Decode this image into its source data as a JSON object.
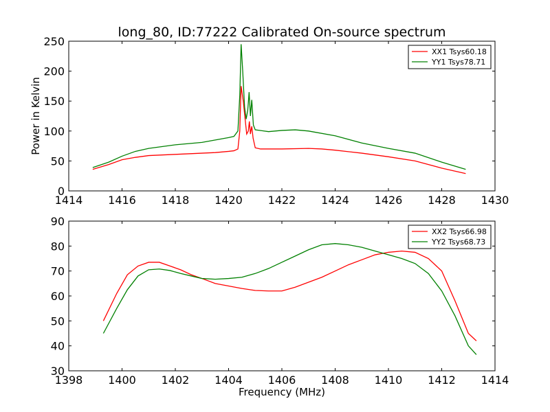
{
  "figure": {
    "title": "long_80, ID:77222 Calibrated On-source spectrum",
    "ylabel": "Power in Kelvin",
    "xlabel": "Frequency (MHz)"
  },
  "chart_data": [
    {
      "type": "line",
      "xlim": [
        1414,
        1430
      ],
      "ylim": [
        0,
        250
      ],
      "xticks": [
        1414,
        1416,
        1418,
        1420,
        1422,
        1424,
        1426,
        1428,
        1430
      ],
      "yticks": [
        0,
        50,
        100,
        150,
        200,
        250
      ],
      "legend": "top-right",
      "grid": false,
      "series": [
        {
          "name": "XX1 Tsys60.18",
          "color": "#ff0000",
          "points": [
            [
              1414.9,
              36
            ],
            [
              1415.5,
              44
            ],
            [
              1416,
              52
            ],
            [
              1416.5,
              56
            ],
            [
              1417,
              59
            ],
            [
              1417.5,
              60
            ],
            [
              1418,
              61
            ],
            [
              1418.5,
              62
            ],
            [
              1419,
              63
            ],
            [
              1419.5,
              64
            ],
            [
              1420,
              66
            ],
            [
              1420.2,
              67
            ],
            [
              1420.35,
              70
            ],
            [
              1420.42,
              100
            ],
            [
              1420.47,
              175
            ],
            [
              1420.55,
              150
            ],
            [
              1420.62,
              120
            ],
            [
              1420.68,
              95
            ],
            [
              1420.74,
              100
            ],
            [
              1420.78,
              116
            ],
            [
              1420.82,
              95
            ],
            [
              1420.87,
              108
            ],
            [
              1420.92,
              88
            ],
            [
              1421,
              72
            ],
            [
              1421.2,
              70
            ],
            [
              1422,
              70
            ],
            [
              1423,
              71
            ],
            [
              1423.5,
              70
            ],
            [
              1424,
              68
            ],
            [
              1425,
              63
            ],
            [
              1426,
              57
            ],
            [
              1427,
              50
            ],
            [
              1428,
              38
            ],
            [
              1428.9,
              29
            ]
          ]
        },
        {
          "name": "YY1 Tsys78.71",
          "color": "#008000",
          "points": [
            [
              1414.9,
              39
            ],
            [
              1415.5,
              48
            ],
            [
              1416,
              58
            ],
            [
              1416.5,
              66
            ],
            [
              1417,
              71
            ],
            [
              1417.5,
              74
            ],
            [
              1418,
              77
            ],
            [
              1418.5,
              79
            ],
            [
              1419,
              81
            ],
            [
              1419.5,
              85
            ],
            [
              1420,
              89
            ],
            [
              1420.2,
              91
            ],
            [
              1420.35,
              100
            ],
            [
              1420.42,
              160
            ],
            [
              1420.47,
              245
            ],
            [
              1420.53,
              200
            ],
            [
              1420.6,
              140
            ],
            [
              1420.66,
              120
            ],
            [
              1420.72,
              135
            ],
            [
              1420.77,
              165
            ],
            [
              1420.82,
              125
            ],
            [
              1420.87,
              152
            ],
            [
              1420.93,
              110
            ],
            [
              1421,
              102
            ],
            [
              1421.5,
              99
            ],
            [
              1422,
              101
            ],
            [
              1422.5,
              102
            ],
            [
              1423,
              100
            ],
            [
              1424,
              92
            ],
            [
              1425,
              80
            ],
            [
              1426,
              71
            ],
            [
              1427,
              63
            ],
            [
              1428,
              48
            ],
            [
              1428.9,
              36
            ]
          ]
        }
      ]
    },
    {
      "type": "line",
      "xlim": [
        1398,
        1414
      ],
      "ylim": [
        30,
        90
      ],
      "xticks": [
        1398,
        1400,
        1402,
        1404,
        1406,
        1408,
        1410,
        1412,
        1414
      ],
      "yticks": [
        30,
        40,
        50,
        60,
        70,
        80,
        90
      ],
      "legend": "top-right",
      "grid": false,
      "series": [
        {
          "name": "XX2 Tsys66.98",
          "color": "#ff0000",
          "points": [
            [
              1399.3,
              50
            ],
            [
              1399.8,
              61
            ],
            [
              1400.2,
              68.5
            ],
            [
              1400.6,
              72
            ],
            [
              1401,
              73.5
            ],
            [
              1401.4,
              73.5
            ],
            [
              1401.8,
              72
            ],
            [
              1402.2,
              70.5
            ],
            [
              1402.6,
              68.5
            ],
            [
              1403,
              67
            ],
            [
              1403.5,
              65
            ],
            [
              1404,
              64
            ],
            [
              1404.5,
              63
            ],
            [
              1405,
              62.2
            ],
            [
              1405.5,
              62
            ],
            [
              1406,
              62
            ],
            [
              1406.5,
              63.5
            ],
            [
              1407,
              65.5
            ],
            [
              1407.5,
              67.5
            ],
            [
              1408,
              70
            ],
            [
              1408.5,
              72.5
            ],
            [
              1409,
              74.5
            ],
            [
              1409.5,
              76.5
            ],
            [
              1410,
              77.5
            ],
            [
              1410.5,
              78
            ],
            [
              1411,
              77.5
            ],
            [
              1411.5,
              75
            ],
            [
              1412,
              70
            ],
            [
              1412.5,
              58
            ],
            [
              1413,
              45
            ],
            [
              1413.3,
              42
            ]
          ]
        },
        {
          "name": "YY2 Tsys68.73",
          "color": "#008000",
          "points": [
            [
              1399.3,
              45
            ],
            [
              1399.8,
              55
            ],
            [
              1400.2,
              62.5
            ],
            [
              1400.6,
              68
            ],
            [
              1401,
              70.5
            ],
            [
              1401.4,
              70.8
            ],
            [
              1401.8,
              70.2
            ],
            [
              1402.2,
              69
            ],
            [
              1402.6,
              68
            ],
            [
              1403,
              67
            ],
            [
              1403.5,
              66.7
            ],
            [
              1404,
              67
            ],
            [
              1404.5,
              67.5
            ],
            [
              1405,
              69
            ],
            [
              1405.5,
              71
            ],
            [
              1406,
              73.5
            ],
            [
              1406.5,
              76
            ],
            [
              1407,
              78.5
            ],
            [
              1407.5,
              80.5
            ],
            [
              1408,
              81
            ],
            [
              1408.5,
              80.5
            ],
            [
              1409,
              79.5
            ],
            [
              1409.5,
              78
            ],
            [
              1410,
              76.5
            ],
            [
              1410.5,
              75
            ],
            [
              1411,
              73
            ],
            [
              1411.5,
              69
            ],
            [
              1412,
              62
            ],
            [
              1412.5,
              52
            ],
            [
              1413,
              40
            ],
            [
              1413.3,
              36.5
            ]
          ]
        }
      ]
    }
  ]
}
